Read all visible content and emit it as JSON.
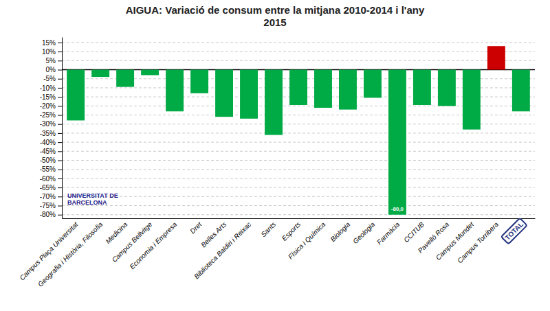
{
  "chart_data": {
    "type": "bar",
    "title": "AIGUA: Variació de consum entre la mitjana 2010-2014 i l'any\n2015",
    "categories": [
      "Campus Plaça Universitat",
      "Geografia i Història, Filosofia",
      "Medicina",
      "Campus Bellvitge",
      "Economia i Empresa",
      "Dret",
      "Belles Arts",
      "Biblioteca Baldiri i Reixac",
      "Sants",
      "Esports",
      "Física i Química",
      "Biologia",
      "Geologia",
      "Farmàcia",
      "CCITUB",
      "Pavelló Rosa",
      "Campus Mundet",
      "Campus Torribera",
      "TOTAL"
    ],
    "values": [
      -28,
      -4,
      -9.5,
      -3,
      -23,
      -13,
      -26,
      -27,
      -36,
      -19.5,
      -21,
      -22,
      -15.5,
      -80,
      -19.5,
      -20,
      -33,
      13,
      -23
    ],
    "value_labels": [
      null,
      null,
      null,
      null,
      null,
      null,
      null,
      null,
      null,
      null,
      null,
      null,
      null,
      "-80,0",
      null,
      null,
      null,
      null,
      null
    ],
    "colors": [
      "#00aa44",
      "#00aa44",
      "#00aa44",
      "#00aa44",
      "#00aa44",
      "#00aa44",
      "#00aa44",
      "#00aa44",
      "#00aa44",
      "#00aa44",
      "#00aa44",
      "#00aa44",
      "#00aa44",
      "#00aa44",
      "#00aa44",
      "#00aa44",
      "#00aa44",
      "#cc0000",
      "#00aa44"
    ],
    "ylim": [
      -82,
      18
    ],
    "yticks": [
      {
        "value": -80,
        "label": "-80%"
      },
      {
        "value": -75,
        "label": "-75%"
      },
      {
        "value": -70,
        "label": "-70%"
      },
      {
        "value": -65,
        "label": "-65%"
      },
      {
        "value": -60,
        "label": "-60%"
      },
      {
        "value": -55,
        "label": "-55%"
      },
      {
        "value": -50,
        "label": "-50%"
      },
      {
        "value": -45,
        "label": "-45%"
      },
      {
        "value": -40,
        "label": "-40%"
      },
      {
        "value": -35,
        "label": "-35%"
      },
      {
        "value": -30,
        "label": "-30%"
      },
      {
        "value": -25,
        "label": "-25%"
      },
      {
        "value": -20,
        "label": "-20%"
      },
      {
        "value": -15,
        "label": "-15%"
      },
      {
        "value": -10,
        "label": "-10%"
      },
      {
        "value": -5,
        "label": "-5%"
      },
      {
        "value": 0,
        "label": "0%"
      },
      {
        "value": 5,
        "label": "5%"
      },
      {
        "value": 10,
        "label": "10%"
      },
      {
        "value": 15,
        "label": "15%"
      }
    ],
    "grid": true,
    "annotations": [
      "UNIVERSITAT DE\nBARCELONA"
    ]
  }
}
